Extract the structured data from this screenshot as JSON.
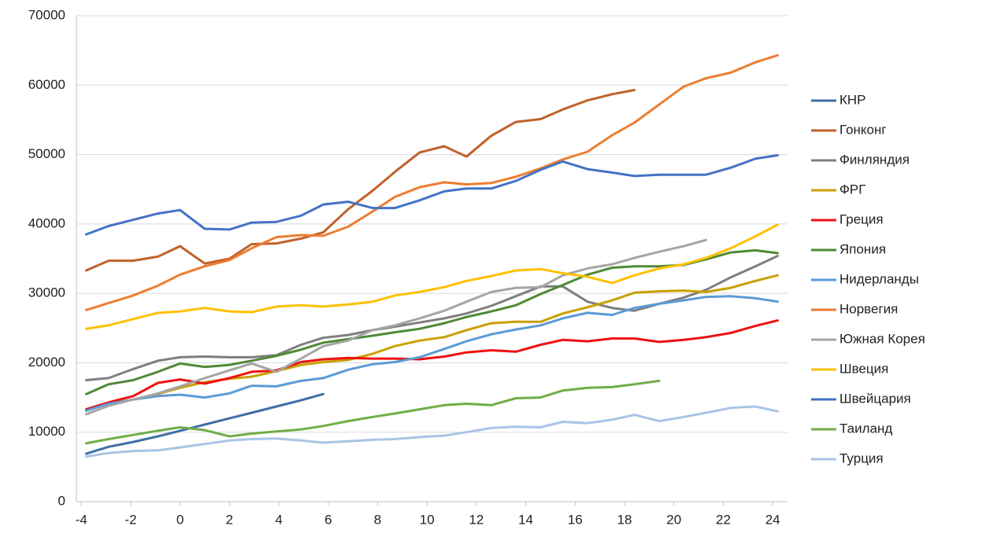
{
  "chart_data": {
    "type": "line",
    "x": [
      -3.8,
      -2.9,
      -1.9,
      -0.9,
      0.0,
      1.0,
      2.0,
      2.9,
      3.9,
      4.9,
      5.8,
      6.8,
      7.8,
      8.7,
      9.7,
      10.7,
      11.6,
      12.6,
      13.6,
      14.6,
      15.5,
      16.5,
      17.5,
      18.4,
      19.4,
      20.4,
      21.3,
      22.3,
      23.3,
      24.2
    ],
    "xlim": [
      -4.2,
      24.6
    ],
    "xticks": [
      -4,
      -2,
      0,
      2,
      4,
      6,
      8,
      10,
      12,
      14,
      16,
      18,
      20,
      22,
      24
    ],
    "ylim": [
      0,
      70000
    ],
    "yticks": [
      0,
      10000,
      20000,
      30000,
      40000,
      50000,
      60000,
      70000
    ],
    "grid": true,
    "legend": "right",
    "series": [
      {
        "name": "КНР",
        "color": "#3d6fa6",
        "values": [
          6900,
          7900,
          8600,
          9400,
          10200,
          11100,
          12000,
          12800,
          13700,
          14600,
          15500,
          null,
          null,
          null,
          null,
          null,
          null,
          null,
          null,
          null,
          null,
          null,
          null,
          null,
          null,
          null,
          null,
          null,
          null,
          null
        ]
      },
      {
        "name": "Гонконг",
        "color": "#c0622a",
        "values": [
          33300,
          34700,
          34700,
          35300,
          36800,
          34300,
          35000,
          37100,
          37200,
          37900,
          38800,
          42100,
          44800,
          47500,
          50300,
          51200,
          49700,
          52700,
          54700,
          55100,
          56500,
          57800,
          58700,
          59300,
          null,
          null,
          null,
          null,
          null,
          null
        ]
      },
      {
        "name": "Финляндия",
        "color": "#7f7f7f",
        "values": [
          17500,
          17800,
          19100,
          20300,
          20800,
          20900,
          20800,
          20800,
          21100,
          22600,
          23600,
          24000,
          24700,
          25200,
          25800,
          26400,
          27100,
          28200,
          29600,
          31000,
          31000,
          28800,
          27900,
          27500,
          28500,
          29400,
          30500,
          32300,
          33900,
          35400
        ]
      },
      {
        "name": "ФРГ",
        "color": "#c9a000",
        "values": [
          13300,
          14100,
          14700,
          15500,
          16400,
          17200,
          17700,
          18000,
          18800,
          19700,
          20100,
          20400,
          21300,
          22400,
          23200,
          23700,
          24700,
          25700,
          25900,
          25900,
          27100,
          28000,
          29000,
          30100,
          30300,
          30400,
          30200,
          30800,
          31800,
          32600
        ]
      },
      {
        "name": "Греция",
        "color": "#ee1111",
        "values": [
          13300,
          14300,
          15200,
          17100,
          17600,
          17000,
          17800,
          18700,
          18900,
          20100,
          20500,
          20700,
          20600,
          20600,
          20500,
          20900,
          21500,
          21800,
          21600,
          22600,
          23300,
          23100,
          23500,
          23500,
          23000,
          23300,
          23700,
          24300,
          25300,
          26100
        ]
      },
      {
        "name": "Япония",
        "color": "#4e8a35",
        "values": [
          15500,
          16900,
          17500,
          18700,
          19900,
          19400,
          19700,
          20300,
          21000,
          21900,
          22900,
          23400,
          23900,
          24400,
          24900,
          25700,
          26600,
          27400,
          28300,
          29900,
          31200,
          32700,
          33700,
          33900,
          33900,
          34100,
          34900,
          35900,
          36200,
          35800
        ]
      },
      {
        "name": "Нидерланды",
        "color": "#5b9bd5",
        "values": [
          13100,
          14100,
          14700,
          15200,
          15400,
          15000,
          15600,
          16700,
          16600,
          17400,
          17800,
          19000,
          19800,
          20100,
          20800,
          22000,
          23100,
          24100,
          24800,
          25400,
          26400,
          27200,
          26900,
          27900,
          28500,
          29000,
          29500,
          29600,
          29300,
          28800
        ]
      },
      {
        "name": "Норвегия",
        "color": "#ed7d31",
        "values": [
          27600,
          28600,
          29700,
          31100,
          32700,
          33900,
          34800,
          36500,
          38100,
          38400,
          38300,
          39600,
          41800,
          43900,
          45300,
          46000,
          45700,
          45900,
          46800,
          48000,
          49300,
          50400,
          52800,
          54600,
          57200,
          59800,
          61000,
          61800,
          63300,
          64300
        ]
      },
      {
        "name": "Южная Корея",
        "color": "#a5a5a5",
        "values": [
          12600,
          13800,
          14700,
          15600,
          16600,
          17800,
          18900,
          19900,
          18700,
          20600,
          22400,
          23200,
          24700,
          25400,
          26400,
          27500,
          28800,
          30200,
          30800,
          30900,
          32600,
          33600,
          34200,
          35100,
          36000,
          36800,
          37700,
          null,
          null,
          null
        ]
      },
      {
        "name": "Швеция",
        "color": "#ffc000",
        "values": [
          24900,
          25400,
          26300,
          27200,
          27400,
          27900,
          27400,
          27300,
          28100,
          28300,
          28100,
          28400,
          28800,
          29700,
          30200,
          30900,
          31800,
          32500,
          33300,
          33500,
          32900,
          32400,
          31500,
          32600,
          33600,
          34200,
          35100,
          36500,
          38200,
          39900
        ]
      },
      {
        "name": "Швейцария",
        "color": "#4472c4",
        "values": [
          38500,
          39700,
          40600,
          41500,
          42000,
          39300,
          39200,
          40200,
          40300,
          41200,
          42800,
          43200,
          42300,
          42300,
          43400,
          44700,
          45100,
          45100,
          46200,
          47800,
          49000,
          47900,
          47400,
          46900,
          47100,
          47100,
          47100,
          48100,
          49400,
          49900
        ]
      },
      {
        "name": "Таиланд",
        "color": "#70ad47",
        "values": [
          8400,
          9000,
          9600,
          10200,
          10700,
          10300,
          9400,
          9800,
          10100,
          10400,
          10900,
          11600,
          12200,
          12700,
          13300,
          13900,
          14100,
          13900,
          14900,
          15000,
          16000,
          16400,
          16500,
          16900,
          17400,
          null,
          null,
          null,
          null,
          null
        ]
      },
      {
        "name": "Турция",
        "color": "#a9c4e6",
        "values": [
          6500,
          7000,
          7300,
          7400,
          7800,
          8300,
          8800,
          9000,
          9100,
          8800,
          8500,
          8700,
          8900,
          9000,
          9300,
          9500,
          10000,
          10600,
          10800,
          10700,
          11500,
          11300,
          11800,
          12500,
          11600,
          12200,
          12800,
          13500,
          13700,
          13000
        ]
      }
    ]
  }
}
